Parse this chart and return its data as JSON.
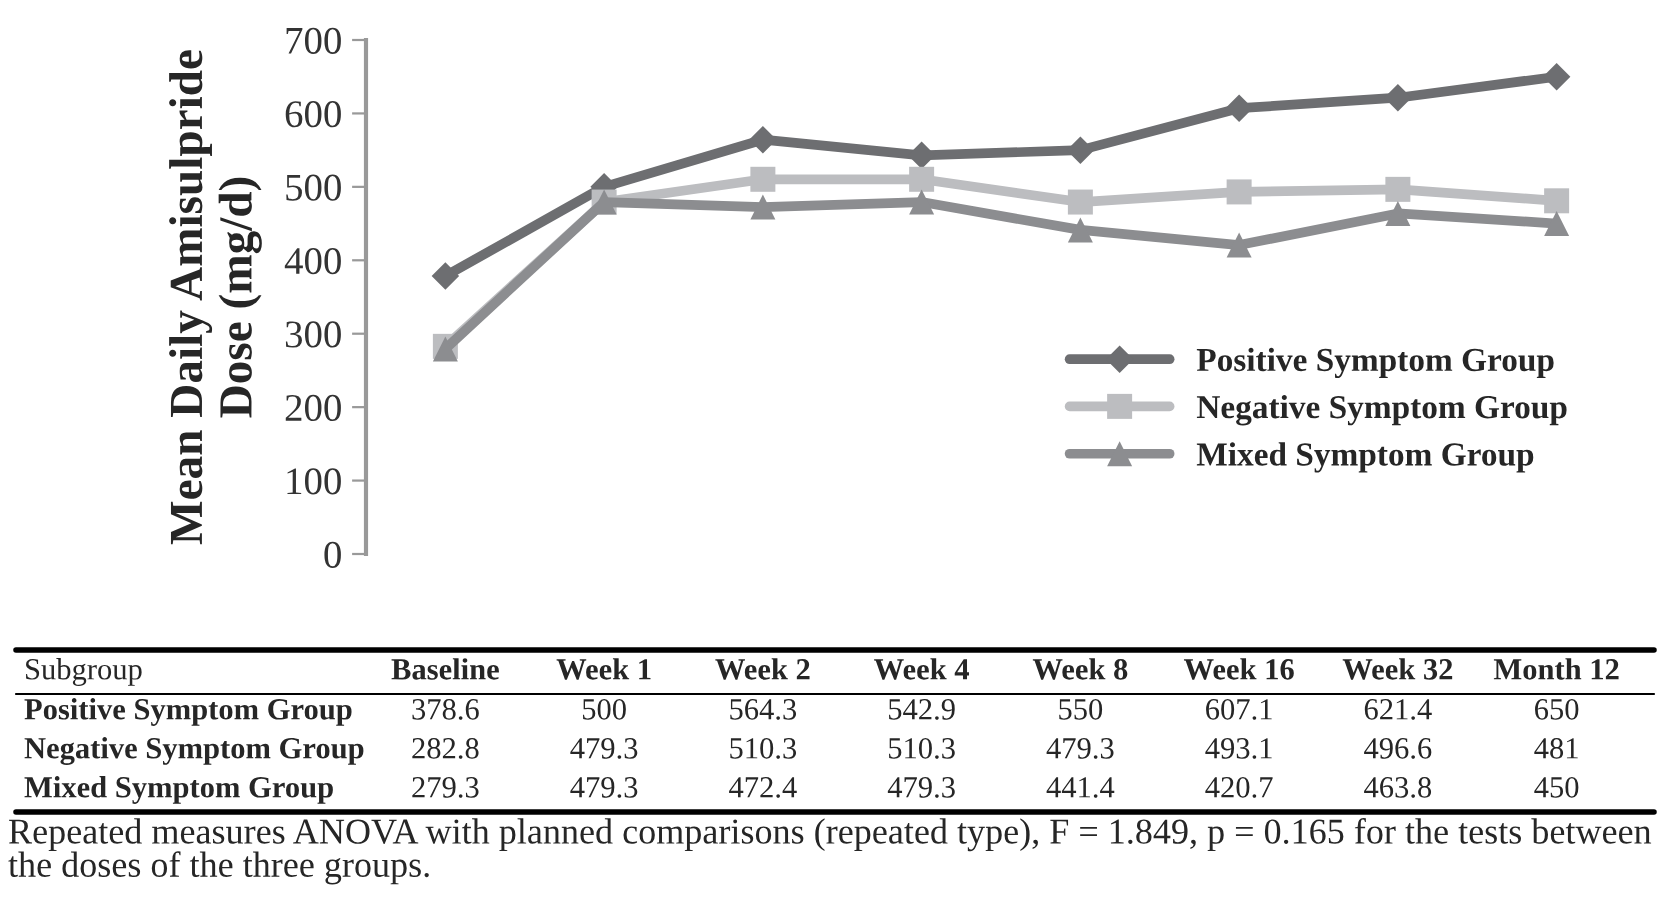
{
  "chart_data": {
    "type": "line",
    "ylabel": "Mean Daily Amisulpride\nDose (mg/d)",
    "xlabel": "Subgroup",
    "categories": [
      "Baseline",
      "Week 1",
      "Week 2",
      "Week 4",
      "Week 8",
      "Week 16",
      "Week 32",
      "Month 12"
    ],
    "series": [
      {
        "name": "Positive Symptom Group",
        "color": "#6d6e71",
        "marker": "diamond",
        "values": [
          378.6,
          500,
          564.3,
          542.9,
          550,
          607.1,
          621.4,
          650
        ]
      },
      {
        "name": "Negative Symptom Group",
        "color": "#bcbdc0",
        "marker": "square",
        "values": [
          282.8,
          479.3,
          510.3,
          510.3,
          479.3,
          493.1,
          496.6,
          481
        ]
      },
      {
        "name": "Mixed Symptom Group",
        "color": "#8c8d90",
        "marker": "triangle",
        "values": [
          279.3,
          479.3,
          472.4,
          479.3,
          441.4,
          420.7,
          463.8,
          450
        ]
      }
    ],
    "ylim": [
      0,
      700
    ],
    "yticks": [
      0,
      100,
      200,
      300,
      400,
      500,
      600,
      700
    ],
    "grid": false,
    "legend": "lower right",
    "data_labels": true,
    "line_style": "solid",
    "annotations": [
      "Repeated measures ANOVA with planned comparisons (repeated type), F = 1.849, p = 0.165 for the tests between the doses of the three groups."
    ]
  }
}
